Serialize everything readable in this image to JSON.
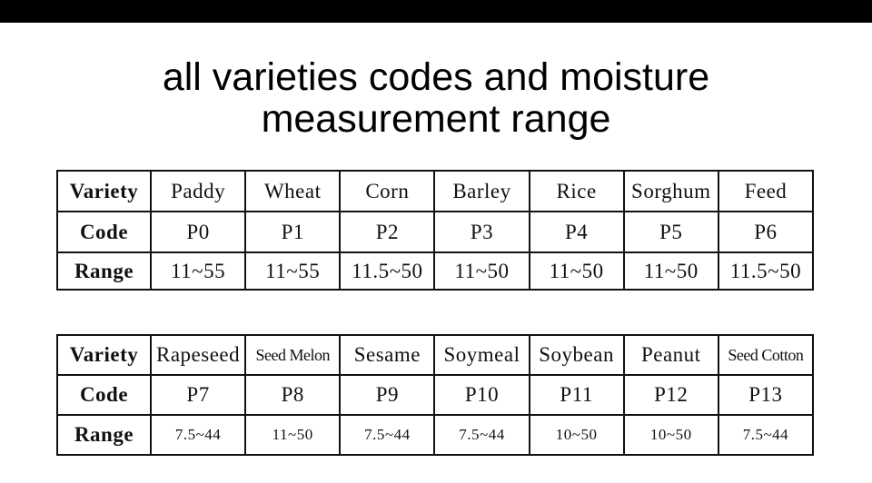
{
  "header": {
    "title_lines": [
      "all varieties codes and moisture",
      "measurement range"
    ]
  },
  "tables": [
    {
      "rows": [
        [
          "Variety",
          "Paddy",
          "Wheat",
          "Corn",
          "Barley",
          "Rice",
          "Sorghum",
          "Feed"
        ],
        [
          "Code",
          "P0",
          "P1",
          "P2",
          "P3",
          "P4",
          "P5",
          "P6"
        ],
        [
          "Range",
          "11~55",
          "11~55",
          "11.5~50",
          "11~50",
          "11~50",
          "11~50",
          "11.5~50"
        ]
      ]
    },
    {
      "rows": [
        [
          "Variety",
          "Rapeseed",
          "Seed Melon",
          "Sesame",
          "Soymeal",
          "Soybean",
          "Peanut",
          "Seed Cotton"
        ],
        [
          "Code",
          "P7",
          "P8",
          "P9",
          "P10",
          "P11",
          "P12",
          "P13"
        ],
        [
          "Range",
          "7.5~44",
          "11~50",
          "7.5~44",
          "7.5~44",
          "10~50",
          "10~50",
          "7.5~44"
        ]
      ]
    }
  ]
}
